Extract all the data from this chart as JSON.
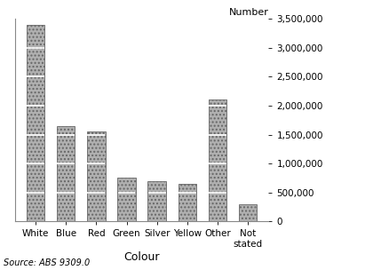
{
  "categories": [
    "White",
    "Blue",
    "Red",
    "Green",
    "Silver",
    "Yellow",
    "Other",
    "Not\nstated"
  ],
  "values": [
    3400000,
    1650000,
    1550000,
    750000,
    700000,
    650000,
    2100000,
    300000
  ],
  "bar_color": "#b0b0b0",
  "title": "",
  "ylabel": "Number",
  "xlabel": "Colour",
  "ylim": [
    0,
    3500000
  ],
  "yticks": [
    0,
    500000,
    1000000,
    1500000,
    2000000,
    2500000,
    3000000,
    3500000
  ],
  "ytick_labels": [
    "0",
    "500,000",
    "1,000,000",
    "1,500,000",
    "2,000,000",
    "2,500,000",
    "3,000,000",
    "3,500,000"
  ],
  "source_text": "Source: ABS 9309.0",
  "background_color": "#ffffff",
  "ylabel_fontsize": 8,
  "xlabel_fontsize": 9,
  "tick_fontsize": 7.5,
  "source_fontsize": 7,
  "hatch_line_color": "white",
  "hatch_interval": 500000
}
